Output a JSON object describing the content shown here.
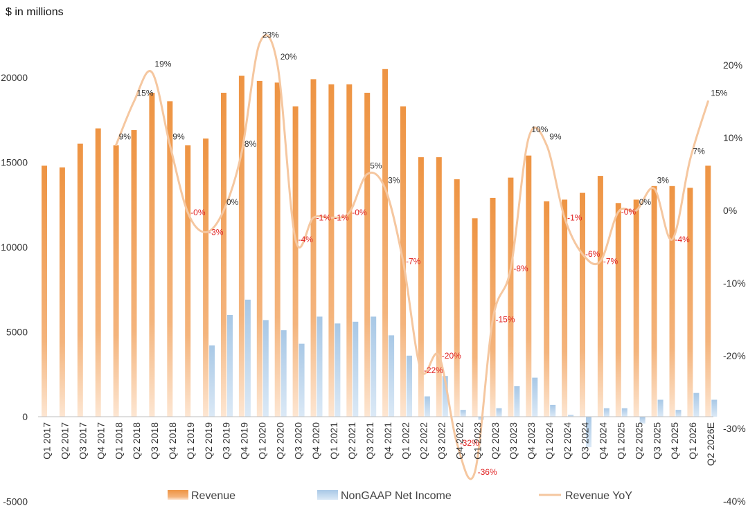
{
  "chart_data": {
    "type": "bar",
    "unit_label": "$ in millions",
    "categories": [
      "Q1 2017",
      "Q2 2017",
      "Q3 2017",
      "Q4 2017",
      "Q1 2018",
      "Q2 2018",
      "Q3 2018",
      "Q4 2018",
      "Q1 2019",
      "Q2 2019",
      "Q3 2019",
      "Q4 2019",
      "Q1 2020",
      "Q2 2020",
      "Q3 2020",
      "Q4 2020",
      "Q1 2021",
      "Q2 2021",
      "Q3 2021",
      "Q4 2021",
      "Q1 2022",
      "Q2 2022",
      "Q3 2022",
      "Q4 2022",
      "Q1 2023",
      "Q2 2023",
      "Q3 2023",
      "Q4 2023",
      "Q1 2024",
      "Q2 2024",
      "Q3 2024",
      "Q4 2024",
      "Q1 2025",
      "Q2 2025",
      "Q3 2025",
      "Q4 2025",
      "Q1 2026",
      "Q2 2026E"
    ],
    "series": [
      {
        "name": "Revenue",
        "axis": "left",
        "color": "#f0a055",
        "values": [
          14800,
          14700,
          16100,
          17000,
          16000,
          16900,
          19100,
          18600,
          16000,
          16400,
          19100,
          20100,
          19800,
          19700,
          18300,
          19900,
          19600,
          19600,
          19100,
          20500,
          18300,
          15300,
          15300,
          14000,
          11700,
          12900,
          14100,
          15400,
          12700,
          12800,
          13200,
          14200,
          12600,
          12800,
          13600,
          13600,
          13500,
          14800
        ]
      },
      {
        "name": "NonGAAP Net Income",
        "axis": "left",
        "color": "#b8d3eb",
        "values": [
          null,
          null,
          null,
          null,
          null,
          null,
          null,
          null,
          null,
          4200,
          6000,
          6900,
          5700,
          5100,
          4300,
          5900,
          5500,
          5600,
          5900,
          4800,
          3600,
          1200,
          2400,
          400,
          -200,
          500,
          1800,
          2300,
          700,
          100,
          -1800,
          500,
          500,
          -400,
          1000,
          400,
          1400,
          1000
        ]
      },
      {
        "name": "Revenue YoY",
        "axis": "right",
        "color": "#f5c7a0",
        "values": [
          null,
          null,
          null,
          null,
          9,
          15,
          19,
          9,
          -0.3,
          -3,
          0,
          8,
          23,
          20,
          -4,
          -1,
          -1,
          -0.3,
          5,
          3,
          -7,
          -22,
          -20,
          -32,
          -36,
          -15,
          -8,
          10,
          9,
          -1,
          -6,
          -7,
          -0.2,
          0,
          3,
          -4,
          7,
          15
        ],
        "labels": [
          "",
          "",
          "",
          "",
          "9%",
          "15%",
          "19%",
          "9%",
          "-0%",
          "-3%",
          "0%",
          "8%",
          "23%",
          "20%",
          "-4%",
          "-1%",
          "-1%",
          "-0%",
          "5%",
          "3%",
          "-7%",
          "-22%",
          "-20%",
          "-32%",
          "-36%",
          "-15%",
          "-8%",
          "10%",
          "9%",
          "-1%",
          "-6%",
          "-7%",
          "-0%",
          "0%",
          "3%",
          "-4%",
          "7%",
          "15%"
        ]
      }
    ],
    "y_left": {
      "min": -5000,
      "max": 20000,
      "ticks": [
        -5000,
        0,
        5000,
        10000,
        15000,
        20000
      ]
    },
    "y_right": {
      "min": -40,
      "max": 20,
      "ticks": [
        -40,
        -30,
        -20,
        -10,
        0,
        10,
        20
      ],
      "tick_labels": [
        "-40%",
        "-30%",
        "-20%",
        "-10%",
        "0%",
        "10%",
        "20%"
      ]
    },
    "legend": [
      "Revenue",
      "NonGAAP Net Income",
      "Revenue YoY"
    ],
    "legend_position": "bottom",
    "grid": false,
    "positive_label_color": "#333333",
    "negative_label_color": "#e02020"
  }
}
